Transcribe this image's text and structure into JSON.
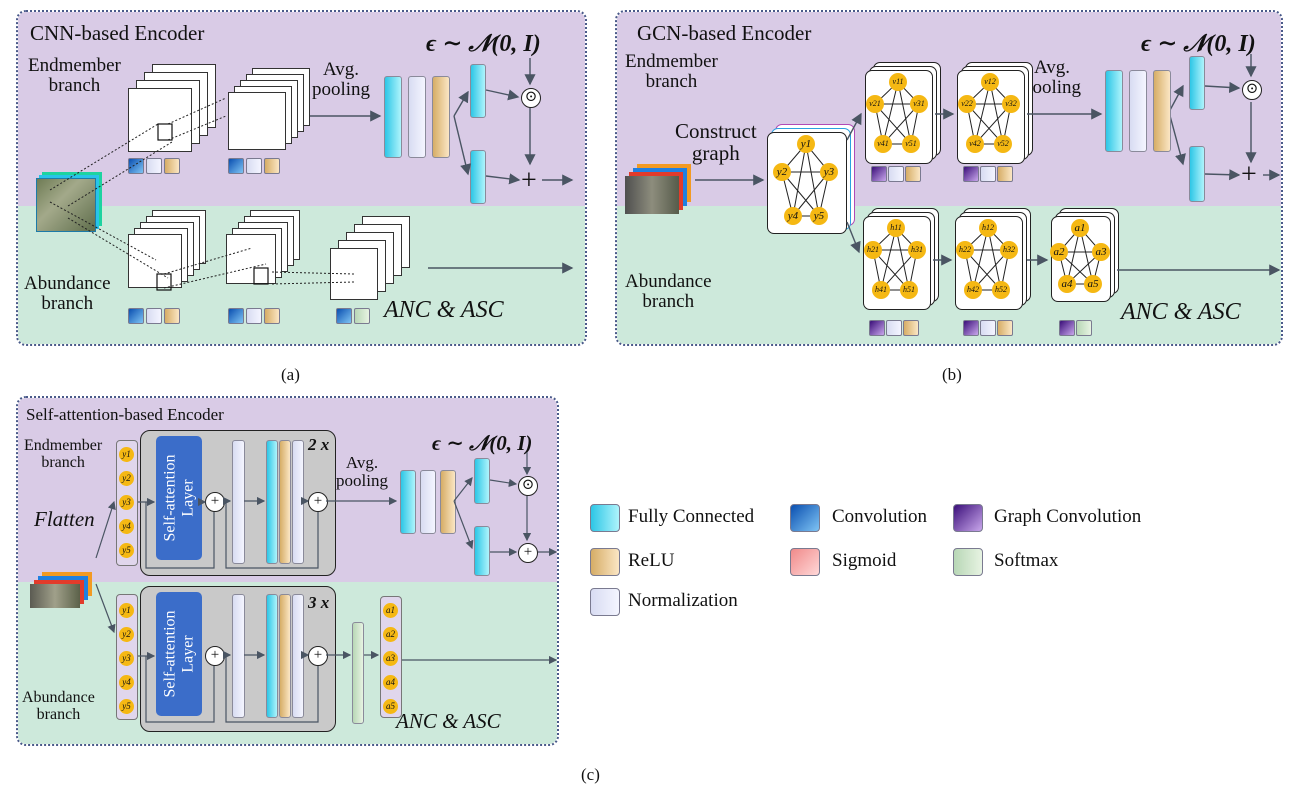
{
  "panel_a": {
    "title": "CNN-based Encoder",
    "endmember_branch": "Endmember\nbranch",
    "abundance_branch": "Abundance\nbranch",
    "avg_pooling": "Avg.\npooling",
    "eps": "ϵ ∼ 𝒩(0, I)",
    "anc_asc": "ANC & ASC",
    "caption": "(a)"
  },
  "panel_b": {
    "title": "GCN-based Encoder",
    "endmember_branch": "Endmember\nbranch",
    "abundance_branch": "Abundance\nbranch",
    "construct_graph": "Construct\ngraph",
    "avg_pooling": "Avg.\npooling",
    "eps": "ϵ ∼ 𝒩(0, I)",
    "anc_asc": "ANC & ASC",
    "caption": "(b)",
    "input_nodes": [
      "y1",
      "y2",
      "y3",
      "y4",
      "y5"
    ],
    "v1_nodes": [
      "v11",
      "v21",
      "v31",
      "v41",
      "v51"
    ],
    "v2_nodes": [
      "v12",
      "v22",
      "v32",
      "v42",
      "v52"
    ],
    "h1_nodes": [
      "h11",
      "h21",
      "h31",
      "h41",
      "h51"
    ],
    "h2_nodes": [
      "h12",
      "h22",
      "h32",
      "h42",
      "h52"
    ],
    "a_nodes": [
      "a1",
      "a2",
      "a3",
      "a4",
      "a5"
    ]
  },
  "panel_c": {
    "title": "Self-attention-based Encoder",
    "endmember_branch": "Endmember\nbranch",
    "abundance_branch": "Abundance\nbranch",
    "flatten": "Flatten",
    "self_attention": "Self-attention\nLayer",
    "repeat_top": "2 x",
    "repeat_bottom": "3 x",
    "avg_pooling": "Avg.\npooling",
    "eps": "ϵ ∼ 𝒩(0, I)",
    "anc_asc": "ANC & ASC",
    "caption": "(c)",
    "y_nodes": [
      "y1",
      "y2",
      "y3",
      "y4",
      "y5"
    ],
    "a_nodes": [
      "a1",
      "a2",
      "a3",
      "a4",
      "a5"
    ]
  },
  "legend": [
    {
      "label": "Fully Connected",
      "swatch": "fc"
    },
    {
      "label": "Convolution",
      "swatch": "conv"
    },
    {
      "label": "Graph Convolution",
      "swatch": "gconv"
    },
    {
      "label": "ReLU",
      "swatch": "relu"
    },
    {
      "label": "Sigmoid",
      "swatch": "sig"
    },
    {
      "label": "Softmax",
      "swatch": "sm"
    },
    {
      "label": "Normalization",
      "swatch": "norm"
    }
  ],
  "colors": {
    "endmember_band": "#d9cbe6",
    "abundance_band": "#cde9db",
    "node": "#f5b813",
    "self_attention": "#3b6dc9"
  }
}
